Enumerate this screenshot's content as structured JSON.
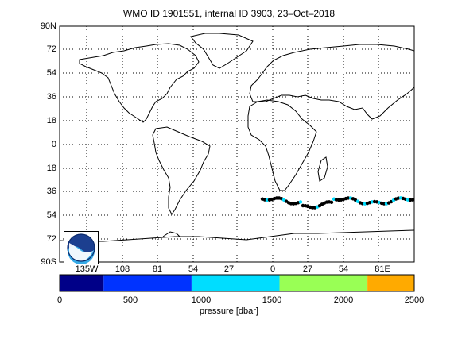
{
  "title": "WMO ID 1901551, internal ID 3903, 23–Oct–2018",
  "map": {
    "lat_labels": [
      "90N",
      "72",
      "54",
      "36",
      "18",
      "0",
      "18",
      "36",
      "54",
      "72",
      "90S"
    ],
    "lon_labels": [
      "135W",
      "108",
      "81",
      "54",
      "27",
      "0",
      "27",
      "54",
      "81E"
    ],
    "grid": "dotted",
    "logo_text": "NOAA"
  },
  "colorbar": {
    "ticks": [
      "0",
      "500",
      "1000",
      "1500",
      "2000",
      "2500"
    ],
    "label": "pressure [dbar]",
    "colors": [
      "#000088",
      "#0033ff",
      "#00ddff",
      "#99ff55",
      "#ffaa00"
    ],
    "boundaries": [
      0,
      310,
      930,
      1550,
      2170,
      2500
    ]
  },
  "colors": {
    "track_points": "#000000",
    "shallow_points": "#00ddff"
  }
}
